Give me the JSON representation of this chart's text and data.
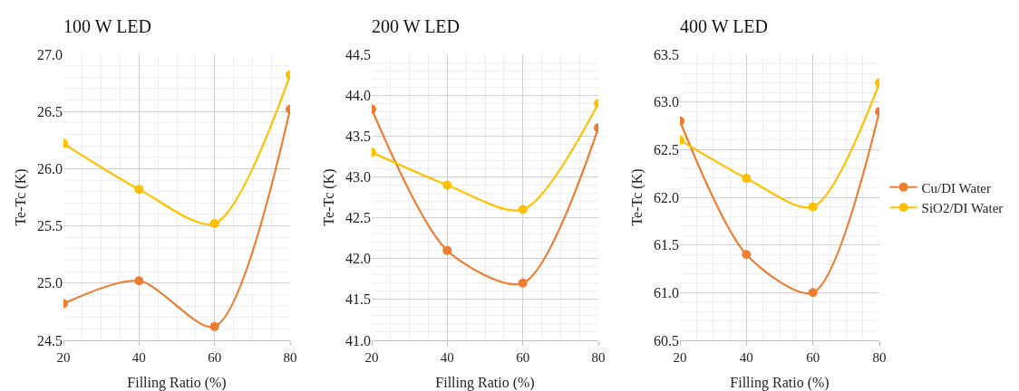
{
  "chart_data": [
    {
      "type": "line",
      "title": "100 W LED",
      "xlabel": "Filling Ratio (%)",
      "ylabel": "Te-Tc (K)",
      "x": [
        20,
        40,
        60,
        80
      ],
      "xlim": [
        20,
        80
      ],
      "xticks": [
        20,
        40,
        60,
        80
      ],
      "ylim": [
        24.5,
        27.0
      ],
      "yticks": [
        {
          "value": 24.5,
          "label": "24.5"
        },
        {
          "value": 25,
          "label": "25.0"
        },
        {
          "value": 25.5,
          "label": "25.5"
        },
        {
          "value": 26,
          "label": "26.0"
        },
        {
          "value": 26.5,
          "label": "26.5"
        },
        {
          "value": 27,
          "label": "27.0"
        }
      ],
      "grid": true,
      "legend": false,
      "marker": "circle",
      "line_style": "solid",
      "series": [
        {
          "color": "#ed7d31",
          "values": [
            24.82,
            25.02,
            24.62,
            26.52
          ]
        },
        {
          "color": "#ffc000",
          "values": [
            26.22,
            25.82,
            25.52,
            26.82
          ]
        }
      ]
    },
    {
      "type": "line",
      "title": "200 W LED",
      "xlabel": "Filling Ratio (%)",
      "ylabel": "Te-Tc (K)",
      "x": [
        20,
        40,
        60,
        80
      ],
      "xlim": [
        20,
        80
      ],
      "xticks": [
        20,
        40,
        60,
        80
      ],
      "ylim": [
        41.0,
        44.5
      ],
      "yticks": [
        {
          "value": 41,
          "label": "41.0"
        },
        {
          "value": 41.5,
          "label": "41.5"
        },
        {
          "value": 42,
          "label": "42.0"
        },
        {
          "value": 42.5,
          "label": "42.5"
        },
        {
          "value": 43,
          "label": "43.0"
        },
        {
          "value": 43.5,
          "label": "43.5"
        },
        {
          "value": 44,
          "label": "44.0"
        },
        {
          "value": 44.5,
          "label": "44.5"
        }
      ],
      "grid": true,
      "legend": false,
      "marker": "circle",
      "line_style": "solid",
      "series": [
        {
          "color": "#ed7d31",
          "values": [
            43.83,
            42.1,
            41.7,
            43.6
          ]
        },
        {
          "color": "#ffc000",
          "values": [
            43.3,
            42.9,
            42.6,
            43.9
          ]
        }
      ]
    },
    {
      "type": "line",
      "title": "400 W LED",
      "xlabel": "Filling Ratio (%)",
      "ylabel": "Te-Tc (K)",
      "x": [
        20,
        40,
        60,
        80
      ],
      "xlim": [
        20,
        80
      ],
      "xticks": [
        20,
        40,
        60,
        80
      ],
      "ylim": [
        60.5,
        63.5
      ],
      "yticks": [
        {
          "value": 60.5,
          "label": "60.5"
        },
        {
          "value": 61,
          "label": "61.0"
        },
        {
          "value": 61.5,
          "label": "61.5"
        },
        {
          "value": 62,
          "label": "62.0"
        },
        {
          "value": 62.5,
          "label": "62.5"
        },
        {
          "value": 63,
          "label": "63.0"
        },
        {
          "value": 63.5,
          "label": "63.5"
        }
      ],
      "grid": true,
      "legend": "right",
      "marker": "circle",
      "line_style": "solid",
      "series": [
        {
          "name": "Cu/DI Water",
          "color": "#ed7d31",
          "values": [
            62.8,
            61.4,
            61.0,
            62.9
          ]
        },
        {
          "name": "SiO2/DI Water",
          "color": "#ffc000",
          "values": [
            62.6,
            62.2,
            61.9,
            63.2
          ]
        }
      ]
    }
  ]
}
